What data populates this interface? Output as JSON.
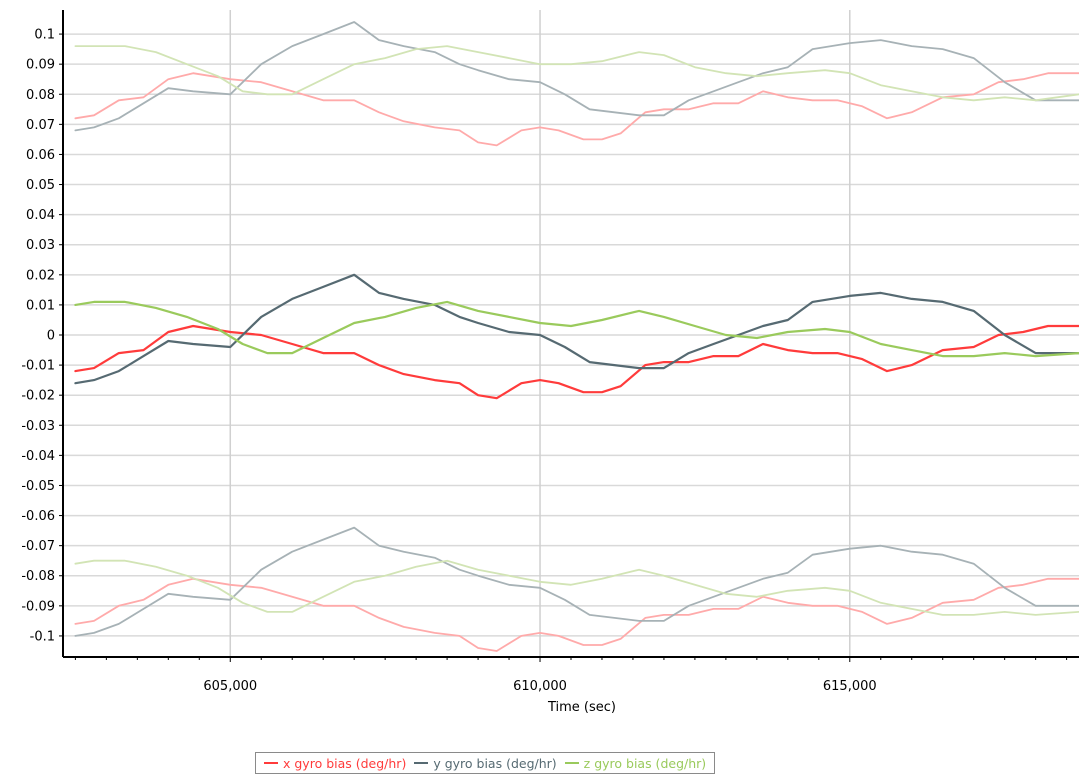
{
  "chart_data": {
    "type": "line",
    "xlabel": "Time (sec)",
    "ylabel": "",
    "xlim": [
      602300,
      618700
    ],
    "ylim": [
      -0.107,
      0.108
    ],
    "x_ticks": [
      605000,
      610000,
      615000
    ],
    "x_tick_labels": [
      "605,000",
      "610,000",
      "615,000"
    ],
    "y_ticks": [
      0.1,
      0.09,
      0.08,
      0.07,
      0.06,
      0.05,
      0.04,
      0.03,
      0.02,
      0.01,
      0,
      -0.01,
      -0.02,
      -0.03,
      -0.04,
      -0.05,
      -0.06,
      -0.07,
      -0.08,
      -0.09,
      -0.1
    ],
    "y_tick_labels": [
      "0.1",
      "0.09",
      "0.08",
      "0.07",
      "0.06",
      "0.05",
      "0.04",
      "0.03",
      "0.02",
      "0.01",
      "0",
      "-0.01",
      "-0.02",
      "-0.03",
      "-0.04",
      "-0.05",
      "-0.06",
      "-0.07",
      "-0.08",
      "-0.09",
      "-0.1"
    ],
    "grid": true,
    "legend_position": "bottom-center",
    "series": [
      {
        "name": "x gyro bias (deg/hr)",
        "color": "#ff3b3b",
        "x": [
          602500,
          602800,
          603200,
          603600,
          604000,
          604400,
          605000,
          605500,
          606000,
          606500,
          607000,
          607400,
          607800,
          608300,
          608700,
          609000,
          609300,
          609700,
          610000,
          610300,
          610700,
          611000,
          611300,
          611700,
          612000,
          612400,
          612800,
          613200,
          613600,
          614000,
          614400,
          614800,
          615200,
          615600,
          616000,
          616500,
          617000,
          617400,
          617800,
          618200,
          618700
        ],
        "y": [
          -0.012,
          -0.011,
          -0.006,
          -0.005,
          0.001,
          0.003,
          0.001,
          0.0,
          -0.003,
          -0.006,
          -0.006,
          -0.01,
          -0.013,
          -0.015,
          -0.016,
          -0.02,
          -0.021,
          -0.016,
          -0.015,
          -0.016,
          -0.019,
          -0.019,
          -0.017,
          -0.01,
          -0.009,
          -0.009,
          -0.007,
          -0.007,
          -0.003,
          -0.005,
          -0.006,
          -0.006,
          -0.008,
          -0.012,
          -0.01,
          -0.005,
          -0.004,
          0.0,
          0.001,
          0.003,
          0.003
        ]
      },
      {
        "name": "y gyro bias (deg/hr)",
        "color": "#566a72",
        "x": [
          602500,
          602800,
          603200,
          603600,
          604000,
          604400,
          605000,
          605500,
          606000,
          606500,
          607000,
          607400,
          607800,
          608300,
          608700,
          609000,
          609500,
          610000,
          610400,
          610800,
          611200,
          611600,
          612000,
          612400,
          612800,
          613200,
          613600,
          614000,
          614400,
          615000,
          615500,
          616000,
          616500,
          617000,
          617500,
          618000,
          618700
        ],
        "y": [
          -0.016,
          -0.015,
          -0.012,
          -0.007,
          -0.002,
          -0.003,
          -0.004,
          0.006,
          0.012,
          0.016,
          0.02,
          0.014,
          0.012,
          0.01,
          0.006,
          0.004,
          0.001,
          0.0,
          -0.004,
          -0.009,
          -0.01,
          -0.011,
          -0.011,
          -0.006,
          -0.003,
          0.0,
          0.003,
          0.005,
          0.011,
          0.013,
          0.014,
          0.012,
          0.011,
          0.008,
          0.0,
          -0.006,
          -0.006
        ]
      },
      {
        "name": "z gyro bias (deg/hr)",
        "color": "#9aca5c",
        "x": [
          602500,
          602800,
          603300,
          603800,
          604300,
          604800,
          605200,
          605600,
          606000,
          606500,
          607000,
          607500,
          608000,
          608500,
          609000,
          609500,
          610000,
          610500,
          611000,
          611600,
          612000,
          612500,
          613000,
          613500,
          614000,
          614600,
          615000,
          615500,
          616000,
          616500,
          617000,
          617500,
          618000,
          618700
        ],
        "y": [
          0.01,
          0.011,
          0.011,
          0.009,
          0.006,
          0.002,
          -0.003,
          -0.006,
          -0.006,
          -0.001,
          0.004,
          0.006,
          0.009,
          0.011,
          0.008,
          0.006,
          0.004,
          0.003,
          0.005,
          0.008,
          0.006,
          0.003,
          0.0,
          -0.001,
          0.001,
          0.002,
          0.001,
          -0.003,
          -0.005,
          -0.007,
          -0.007,
          -0.006,
          -0.007,
          -0.006
        ]
      },
      {
        "name": "",
        "color": "#ffaaaa",
        "x": [
          602500,
          602800,
          603200,
          603600,
          604000,
          604400,
          605000,
          605500,
          606000,
          606500,
          607000,
          607400,
          607800,
          608300,
          608700,
          609000,
          609300,
          609700,
          610000,
          610300,
          610700,
          611000,
          611300,
          611700,
          612000,
          612400,
          612800,
          613200,
          613600,
          614000,
          614400,
          614800,
          615200,
          615600,
          616000,
          616500,
          617000,
          617400,
          617800,
          618200,
          618700
        ],
        "y": [
          0.072,
          0.073,
          0.078,
          0.079,
          0.085,
          0.087,
          0.085,
          0.084,
          0.081,
          0.078,
          0.078,
          0.074,
          0.071,
          0.069,
          0.068,
          0.064,
          0.063,
          0.068,
          0.069,
          0.068,
          0.065,
          0.065,
          0.067,
          0.074,
          0.075,
          0.075,
          0.077,
          0.077,
          0.081,
          0.079,
          0.078,
          0.078,
          0.076,
          0.072,
          0.074,
          0.079,
          0.08,
          0.084,
          0.085,
          0.087,
          0.087
        ]
      },
      {
        "name": "",
        "color": "#a7b2b6",
        "x": [
          602500,
          602800,
          603200,
          603600,
          604000,
          604400,
          605000,
          605500,
          606000,
          606500,
          607000,
          607400,
          607800,
          608300,
          608700,
          609000,
          609500,
          610000,
          610400,
          610800,
          611200,
          611600,
          612000,
          612400,
          612800,
          613200,
          613600,
          614000,
          614400,
          615000,
          615500,
          616000,
          616500,
          617000,
          617500,
          618000,
          618700
        ],
        "y": [
          0.068,
          0.069,
          0.072,
          0.077,
          0.082,
          0.081,
          0.08,
          0.09,
          0.096,
          0.1,
          0.104,
          0.098,
          0.096,
          0.094,
          0.09,
          0.088,
          0.085,
          0.084,
          0.08,
          0.075,
          0.074,
          0.073,
          0.073,
          0.078,
          0.081,
          0.084,
          0.087,
          0.089,
          0.095,
          0.097,
          0.098,
          0.096,
          0.095,
          0.092,
          0.084,
          0.078,
          0.078
        ]
      },
      {
        "name": "",
        "color": "#d2e4b5",
        "x": [
          602500,
          602800,
          603300,
          603800,
          604300,
          604800,
          605200,
          605600,
          606000,
          606500,
          607000,
          607500,
          608000,
          608500,
          609000,
          609500,
          610000,
          610500,
          611000,
          611600,
          612000,
          612500,
          613000,
          613500,
          614000,
          614600,
          615000,
          615500,
          616000,
          616500,
          617000,
          617500,
          618000,
          618700
        ],
        "y": [
          0.096,
          0.096,
          0.096,
          0.094,
          0.09,
          0.086,
          0.081,
          0.08,
          0.08,
          0.085,
          0.09,
          0.092,
          0.095,
          0.096,
          0.094,
          0.092,
          0.09,
          0.09,
          0.091,
          0.094,
          0.093,
          0.089,
          0.087,
          0.086,
          0.087,
          0.088,
          0.087,
          0.083,
          0.081,
          0.079,
          0.078,
          0.079,
          0.078,
          0.08
        ]
      },
      {
        "name": "",
        "color": "#ffaaaa",
        "x": [
          602500,
          602800,
          603200,
          603600,
          604000,
          604400,
          605000,
          605500,
          606000,
          606500,
          607000,
          607400,
          607800,
          608300,
          608700,
          609000,
          609300,
          609700,
          610000,
          610300,
          610700,
          611000,
          611300,
          611700,
          612000,
          612400,
          612800,
          613200,
          613600,
          614000,
          614400,
          614800,
          615200,
          615600,
          616000,
          616500,
          617000,
          617400,
          617800,
          618200,
          618700
        ],
        "y": [
          -0.096,
          -0.095,
          -0.09,
          -0.088,
          -0.083,
          -0.081,
          -0.083,
          -0.084,
          -0.087,
          -0.09,
          -0.09,
          -0.094,
          -0.097,
          -0.099,
          -0.1,
          -0.104,
          -0.105,
          -0.1,
          -0.099,
          -0.1,
          -0.103,
          -0.103,
          -0.101,
          -0.094,
          -0.093,
          -0.093,
          -0.091,
          -0.091,
          -0.087,
          -0.089,
          -0.09,
          -0.09,
          -0.092,
          -0.096,
          -0.094,
          -0.089,
          -0.088,
          -0.084,
          -0.083,
          -0.081,
          -0.081
        ]
      },
      {
        "name": "",
        "color": "#a7b2b6",
        "x": [
          602500,
          602800,
          603200,
          603600,
          604000,
          604400,
          605000,
          605500,
          606000,
          606500,
          607000,
          607400,
          607800,
          608300,
          608700,
          609000,
          609500,
          610000,
          610400,
          610800,
          611200,
          611600,
          612000,
          612400,
          612800,
          613200,
          613600,
          614000,
          614400,
          615000,
          615500,
          616000,
          616500,
          617000,
          617500,
          618000,
          618700
        ],
        "y": [
          -0.1,
          -0.099,
          -0.096,
          -0.091,
          -0.086,
          -0.087,
          -0.088,
          -0.078,
          -0.072,
          -0.068,
          -0.064,
          -0.07,
          -0.072,
          -0.074,
          -0.078,
          -0.08,
          -0.083,
          -0.084,
          -0.088,
          -0.093,
          -0.094,
          -0.095,
          -0.095,
          -0.09,
          -0.087,
          -0.084,
          -0.081,
          -0.079,
          -0.073,
          -0.071,
          -0.07,
          -0.072,
          -0.073,
          -0.076,
          -0.084,
          -0.09,
          -0.09
        ]
      },
      {
        "name": "",
        "color": "#d2e4b5",
        "x": [
          602500,
          602800,
          603300,
          603800,
          604300,
          604800,
          605200,
          605600,
          606000,
          606500,
          607000,
          607500,
          608000,
          608500,
          609000,
          609500,
          610000,
          610500,
          611000,
          611600,
          612000,
          612500,
          613000,
          613500,
          614000,
          614600,
          615000,
          615500,
          616000,
          616500,
          617000,
          617500,
          618000,
          618700
        ],
        "y": [
          -0.076,
          -0.075,
          -0.075,
          -0.077,
          -0.08,
          -0.084,
          -0.089,
          -0.092,
          -0.092,
          -0.087,
          -0.082,
          -0.08,
          -0.077,
          -0.075,
          -0.078,
          -0.08,
          -0.082,
          -0.083,
          -0.081,
          -0.078,
          -0.08,
          -0.083,
          -0.086,
          -0.087,
          -0.085,
          -0.084,
          -0.085,
          -0.089,
          -0.091,
          -0.093,
          -0.093,
          -0.092,
          -0.093,
          -0.092
        ]
      }
    ]
  }
}
